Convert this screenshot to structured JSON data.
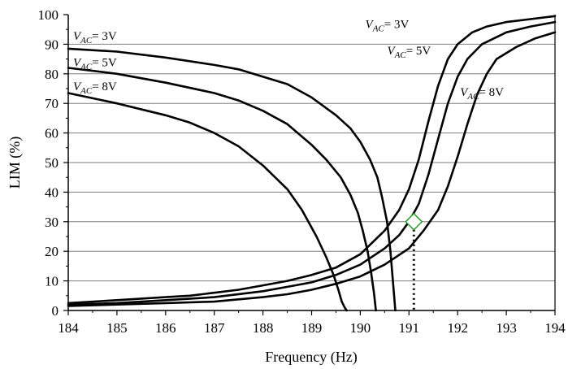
{
  "chart_data": {
    "type": "line",
    "xlabel": "Frequency (Hz)",
    "ylabel": "LIM (%)",
    "xlim": [
      184,
      194
    ],
    "ylim": [
      0,
      100
    ],
    "xticks": [
      "184",
      "185",
      "186",
      "187",
      "188",
      "189",
      "190",
      "191",
      "192",
      "193",
      "194"
    ],
    "yticks": [
      "0",
      "10",
      "20",
      "30",
      "40",
      "50",
      "60",
      "70",
      "80",
      "90",
      "100"
    ],
    "grid": "horizontal",
    "colors": {
      "lines": "#000000",
      "grid": "#7f7f7f",
      "marker": "#2e9b2e"
    },
    "series": [
      {
        "name": "V_AC = 3V",
        "group": "down-sweep",
        "label": {
          "v": "V",
          "sub": "AC",
          "rest": "= 3V"
        },
        "x": [
          184,
          185,
          186,
          187,
          187.5,
          188,
          188.5,
          189,
          189.5,
          189.8,
          190.0,
          190.2,
          190.35,
          190.45,
          190.55,
          190.62,
          190.68,
          190.72
        ],
        "y": [
          88.5,
          87.5,
          85.5,
          83,
          81.5,
          79,
          76.5,
          72,
          66,
          61.5,
          57,
          51,
          45,
          38,
          30,
          20,
          8,
          0
        ]
      },
      {
        "name": "V_AC = 5V",
        "group": "down-sweep",
        "label": {
          "v": "V",
          "sub": "AC",
          "rest": "= 5V"
        },
        "x": [
          184,
          185,
          186,
          187,
          187.5,
          188,
          188.5,
          189,
          189.3,
          189.6,
          189.8,
          189.95,
          190.05,
          190.15,
          190.22,
          190.28,
          190.32
        ],
        "y": [
          82,
          80,
          77,
          73.5,
          71,
          67.5,
          63,
          56,
          51,
          45,
          39,
          33,
          27,
          20,
          13,
          6,
          0
        ]
      },
      {
        "name": "V_AC = 8V",
        "group": "down-sweep",
        "label": {
          "v": "V",
          "sub": "AC",
          "rest": "= 8V"
        },
        "x": [
          184,
          185,
          186,
          186.5,
          187,
          187.5,
          188,
          188.5,
          188.8,
          189.1,
          189.3,
          189.45,
          189.55,
          189.62,
          189.68,
          189.72
        ],
        "y": [
          73.5,
          70,
          66,
          63.5,
          60,
          55.5,
          49,
          41,
          34,
          25,
          18,
          12,
          7,
          3,
          1,
          0
        ]
      },
      {
        "name": "V_AC = 3V",
        "group": "up-sweep",
        "label": {
          "v": "V",
          "sub": "AC",
          "rest": "= 3V"
        },
        "x": [
          184,
          185,
          186,
          186.5,
          187,
          187.5,
          188,
          188.5,
          189,
          189.5,
          190,
          190.5,
          190.8,
          191.0,
          191.2,
          191.4,
          191.6,
          191.8,
          192,
          192.3,
          192.6,
          193,
          193.5,
          194
        ],
        "y": [
          2.5,
          3.5,
          4.5,
          5,
          6,
          7,
          8.5,
          10,
          12,
          14.5,
          19,
          27,
          34,
          41,
          51,
          64,
          76,
          85,
          90,
          94,
          96,
          97.5,
          98.5,
          99.5
        ]
      },
      {
        "name": "V_AC = 5V",
        "group": "up-sweep",
        "label": {
          "v": "V",
          "sub": "AC",
          "rest": "= 5V"
        },
        "x": [
          184,
          185,
          186,
          187,
          188,
          188.5,
          189,
          189.5,
          190,
          190.5,
          190.8,
          191.0,
          191.2,
          191.4,
          191.6,
          191.8,
          192.0,
          192.2,
          192.5,
          193,
          193.5,
          194
        ],
        "y": [
          2,
          2.5,
          3.5,
          4.5,
          6.5,
          8,
          9.5,
          12,
          15.5,
          21,
          25.5,
          30,
          36,
          46,
          58,
          70,
          79,
          85,
          90,
          94,
          96,
          97.5
        ]
      },
      {
        "name": "V_AC = 8V",
        "group": "up-sweep",
        "label": {
          "v": "V",
          "sub": "AC",
          "rest": "= 8V"
        },
        "x": [
          184,
          185,
          186,
          187,
          188,
          188.5,
          189,
          189.5,
          190,
          190.5,
          191.0,
          191.3,
          191.6,
          191.8,
          192.0,
          192.2,
          192.4,
          192.6,
          192.8,
          193.2,
          193.6,
          194
        ],
        "y": [
          1.5,
          2,
          2.5,
          3,
          4.5,
          5.5,
          7,
          9,
          11.5,
          15.5,
          21,
          27,
          34,
          42,
          52,
          63,
          73,
          80,
          85,
          89,
          92,
          94
        ]
      }
    ],
    "marker": {
      "shape": "diamond",
      "x": 191.1,
      "y": 30,
      "dropline": "dotted"
    }
  }
}
